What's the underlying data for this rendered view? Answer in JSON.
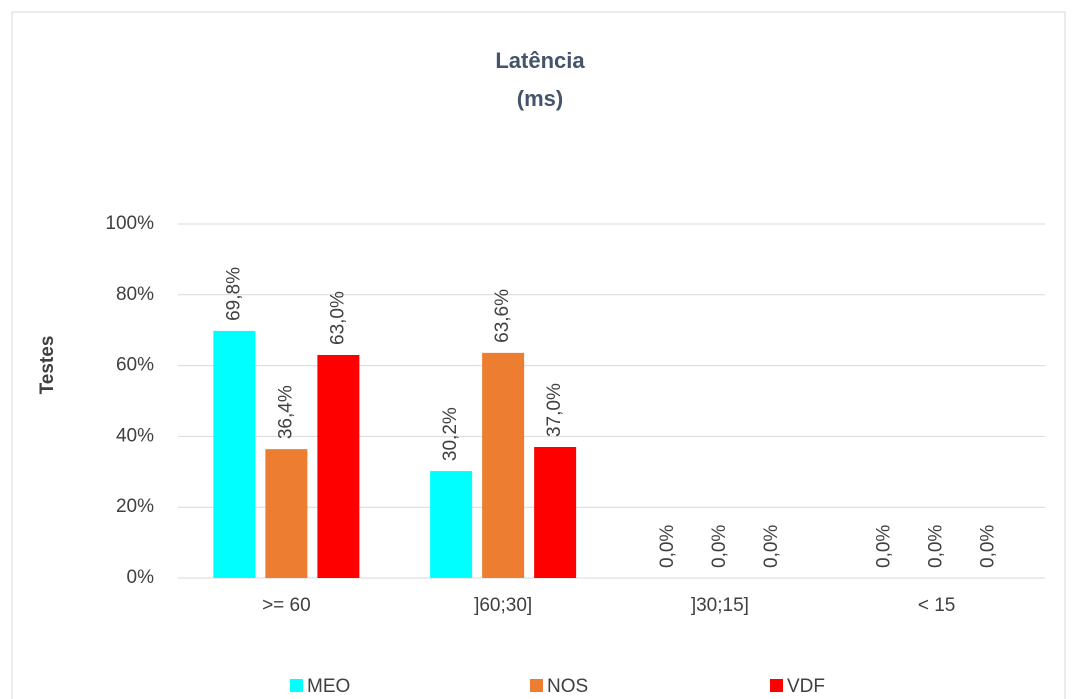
{
  "chart_data": {
    "type": "bar",
    "title": "Latência",
    "subtitle": "(ms)",
    "y_label": "Testes",
    "categories": [
      ">= 60",
      "]60;30]",
      "]30;15]",
      "< 15"
    ],
    "series": [
      {
        "name": "MEO",
        "color": "#00ffff",
        "values": [
          69.8,
          30.2,
          0,
          0
        ],
        "value_labels": [
          "69,8%",
          "30,2%",
          "0,0%",
          "0,0%"
        ]
      },
      {
        "name": "NOS",
        "color": "#ed7d31",
        "values": [
          36.4,
          63.6,
          0,
          0
        ],
        "value_labels": [
          "36,4%",
          "63,6%",
          "0,0%",
          "0,0%"
        ]
      },
      {
        "name": "VDF",
        "color": "#ff0000",
        "values": [
          63.0,
          37.0,
          0,
          0
        ],
        "value_labels": [
          "63,0%",
          "37,0%",
          "0,0%",
          "0,0%"
        ]
      }
    ],
    "ylim": [
      0,
      100
    ],
    "yticks": [
      {
        "value": 0,
        "label": "0%"
      },
      {
        "value": 20,
        "label": "20%"
      },
      {
        "value": 40,
        "label": "40%"
      },
      {
        "value": 60,
        "label": "60%"
      },
      {
        "value": 80,
        "label": "80%"
      },
      {
        "value": 100,
        "label": "100%"
      }
    ],
    "grid": true,
    "legend": "bottom"
  }
}
